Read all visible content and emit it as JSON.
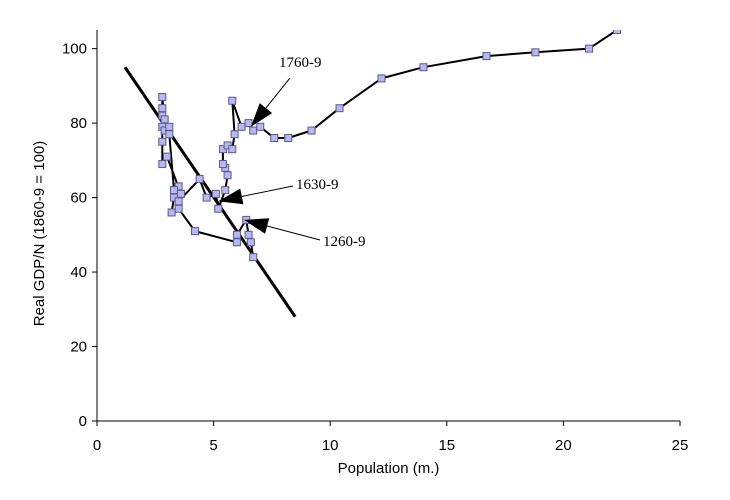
{
  "chart_data": {
    "type": "scatter",
    "xlabel": "Population (m.)",
    "ylabel": "Real GDP/N (1860-9 = 100)",
    "xlim": [
      0,
      25
    ],
    "ylim": [
      0,
      105
    ],
    "x_ticks": [
      "0",
      "5",
      "10",
      "15",
      "20",
      "25"
    ],
    "y_ticks": [
      "0",
      "20",
      "40",
      "60",
      "80",
      "100"
    ],
    "grid": false,
    "legend": "none",
    "series": [
      {
        "points": [
          [
            6.7,
            44
          ],
          [
            6.6,
            48
          ],
          [
            6.5,
            50
          ],
          [
            6.4,
            54
          ],
          [
            6.0,
            50
          ],
          [
            6.0,
            48
          ],
          [
            4.2,
            51
          ],
          [
            3.5,
            57
          ],
          [
            3.2,
            56
          ],
          [
            3.3,
            60
          ],
          [
            3.5,
            63
          ],
          [
            3.6,
            61
          ],
          [
            3.0,
            71
          ],
          [
            2.8,
            69
          ],
          [
            2.8,
            75
          ],
          [
            2.8,
            79
          ],
          [
            2.9,
            78
          ],
          [
            3.1,
            79
          ],
          [
            2.8,
            82
          ],
          [
            2.8,
            84
          ],
          [
            2.8,
            87
          ],
          [
            2.9,
            81
          ],
          [
            3.1,
            77
          ],
          [
            3.3,
            62
          ],
          [
            3.5,
            59
          ],
          [
            4.4,
            65
          ],
          [
            4.7,
            60
          ],
          [
            5.1,
            61
          ],
          [
            5.2,
            57
          ],
          [
            5.5,
            62
          ],
          [
            5.6,
            66
          ],
          [
            5.5,
            68
          ],
          [
            5.4,
            69
          ],
          [
            5.4,
            73
          ],
          [
            5.6,
            74
          ],
          [
            5.8,
            73
          ],
          [
            5.9,
            77
          ],
          [
            5.8,
            86
          ],
          [
            6.2,
            79
          ],
          [
            6.5,
            80
          ],
          [
            6.7,
            78
          ],
          [
            7.0,
            79
          ],
          [
            7.6,
            76
          ],
          [
            8.2,
            76
          ],
          [
            9.2,
            78
          ],
          [
            10.4,
            84
          ],
          [
            12.2,
            92
          ],
          [
            14.0,
            95
          ],
          [
            16.7,
            98
          ],
          [
            18.8,
            99
          ],
          [
            21.1,
            100
          ],
          [
            22.3,
            105
          ]
        ]
      }
    ],
    "trend_line": {
      "x": [
        1.2,
        8.5
      ],
      "y": [
        95,
        28
      ]
    },
    "annotations": [
      {
        "text": "1760-9",
        "point_x": 6.6,
        "point_y": 79
      },
      {
        "text": "1630-9",
        "point_x": 5.2,
        "point_y": 59
      },
      {
        "text": "1260-9",
        "point_x": 6.3,
        "point_y": 54
      }
    ],
    "colors": {
      "line": "#000000",
      "marker_fill": "#b8b8f0",
      "marker_stroke": "#5a5a8a"
    }
  }
}
